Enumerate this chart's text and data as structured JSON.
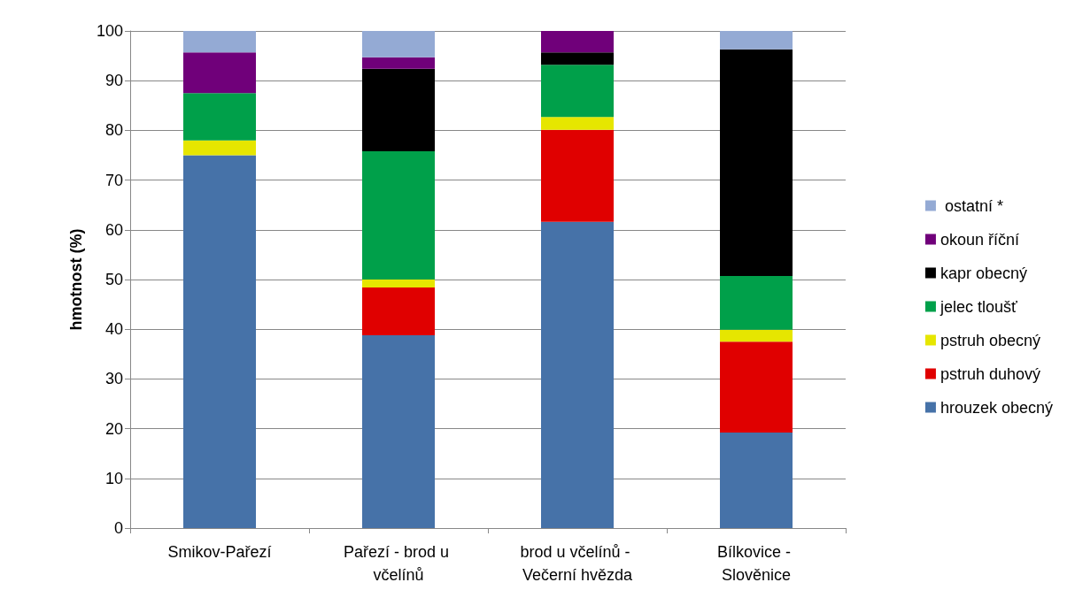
{
  "chart_data": {
    "type": "bar",
    "stacked": true,
    "ylabel": "hmotnost (%)",
    "categories": [
      "Smikov-Pařezí",
      "Pařezí - brod u včelínů",
      "brod u včelínů - Večerní hvězda",
      "Bílkovice - Slověnice"
    ],
    "series": [
      {
        "name": "hrouzek obecný",
        "color": "#4672a8",
        "values": [
          75,
          38.8,
          61.6,
          19.2
        ]
      },
      {
        "name": "pstruh duhový",
        "color": "#e00000",
        "values": [
          0,
          9.6,
          18.5,
          18.3
        ]
      },
      {
        "name": "pstruh obecný",
        "color": "#e6e600",
        "values": [
          3,
          1.6,
          2.6,
          2.4
        ]
      },
      {
        "name": "jelec tloušť",
        "color": "#00a04a",
        "values": [
          9.5,
          25.8,
          10.5,
          10.8
        ]
      },
      {
        "name": "kapr obecný",
        "color": "#000000",
        "values": [
          0,
          16.6,
          2.5,
          45.6
        ]
      },
      {
        "name": "okoun říční",
        "color": "#70007a",
        "values": [
          8.2,
          2.3,
          4.3,
          0
        ]
      },
      {
        "name": " ostatní *",
        "color": "#94aad4",
        "values": [
          4.3,
          5.3,
          0,
          3.7
        ]
      }
    ],
    "ylim": [
      0,
      100
    ],
    "yticks": [
      0,
      10,
      20,
      30,
      40,
      50,
      60,
      70,
      80,
      90,
      100
    ],
    "grid": "y",
    "legend": "right"
  }
}
